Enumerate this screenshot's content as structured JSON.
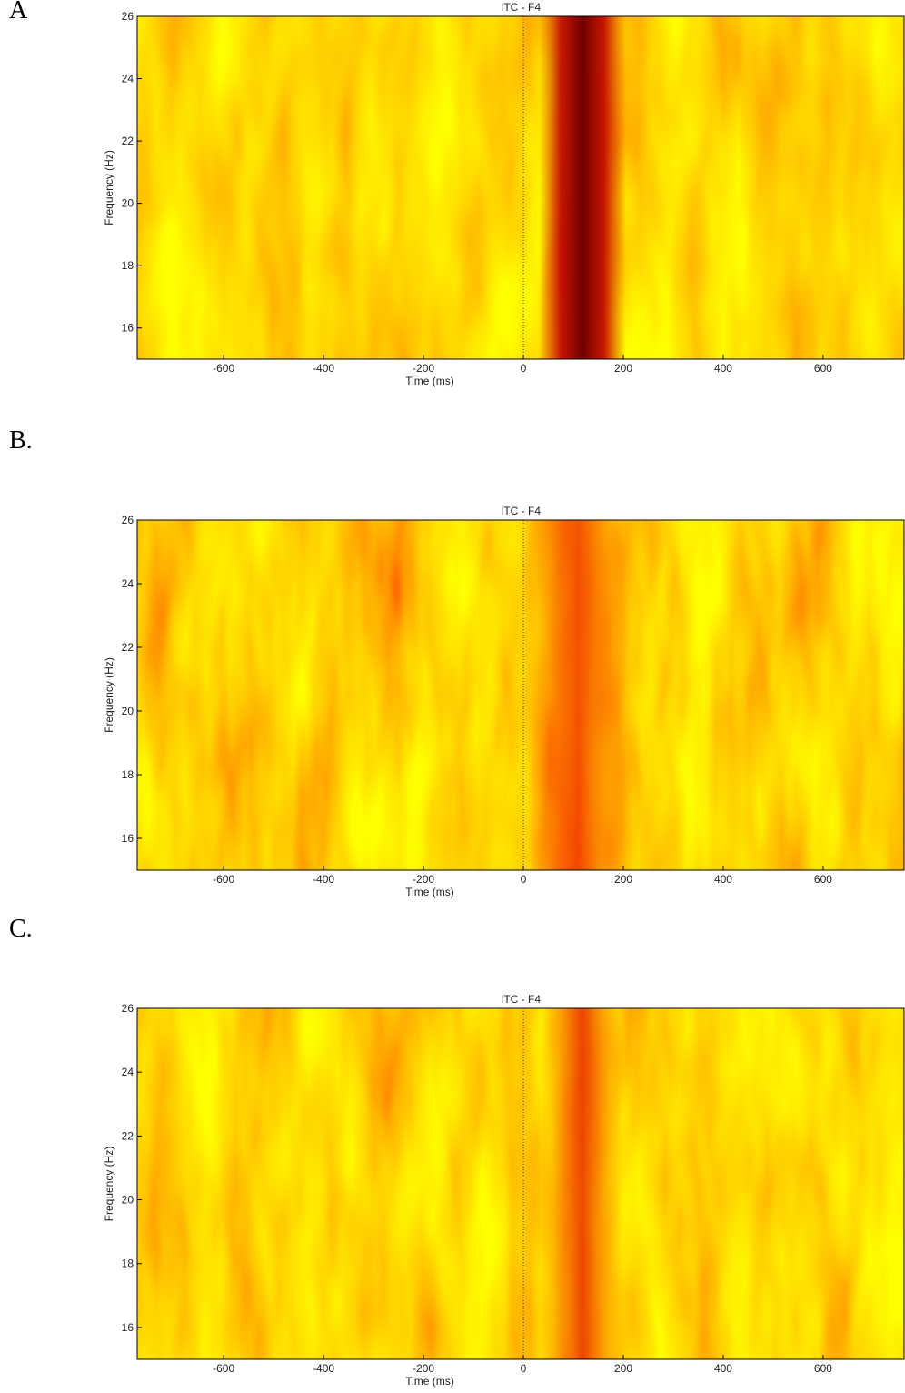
{
  "chart_data": [
    {
      "type": "heatmap",
      "panel_label": "A",
      "title": "ITC - F4",
      "xlabel": "Time (ms)",
      "ylabel": "Frequency (Hz)",
      "xlim": [
        -773,
        762
      ],
      "ylim": [
        15,
        26
      ],
      "xticks": [
        -600,
        -400,
        -200,
        0,
        200,
        400,
        600
      ],
      "yticks": [
        16,
        18,
        20,
        22,
        24,
        26
      ],
      "vline": 0
    },
    {
      "type": "heatmap",
      "panel_label": "B.",
      "title": "ITC - F4",
      "xlabel": "Time (ms)",
      "ylabel": "Frequency (Hz)",
      "xlim": [
        -773,
        762
      ],
      "ylim": [
        15,
        26
      ],
      "xticks": [
        -600,
        -400,
        -200,
        0,
        200,
        400,
        600
      ],
      "yticks": [
        16,
        18,
        20,
        22,
        24,
        26
      ],
      "vline": 0
    },
    {
      "type": "heatmap",
      "panel_label": "C.",
      "title": "ITC - F4",
      "xlabel": "Time (ms)",
      "ylabel": "Frequency (Hz)",
      "xlim": [
        -773,
        762
      ],
      "ylim": [
        15,
        26
      ],
      "xticks": [
        -600,
        -400,
        -200,
        0,
        200,
        400,
        600
      ],
      "yticks": [
        16,
        18,
        20,
        22,
        24,
        26
      ],
      "vline": 0
    }
  ]
}
